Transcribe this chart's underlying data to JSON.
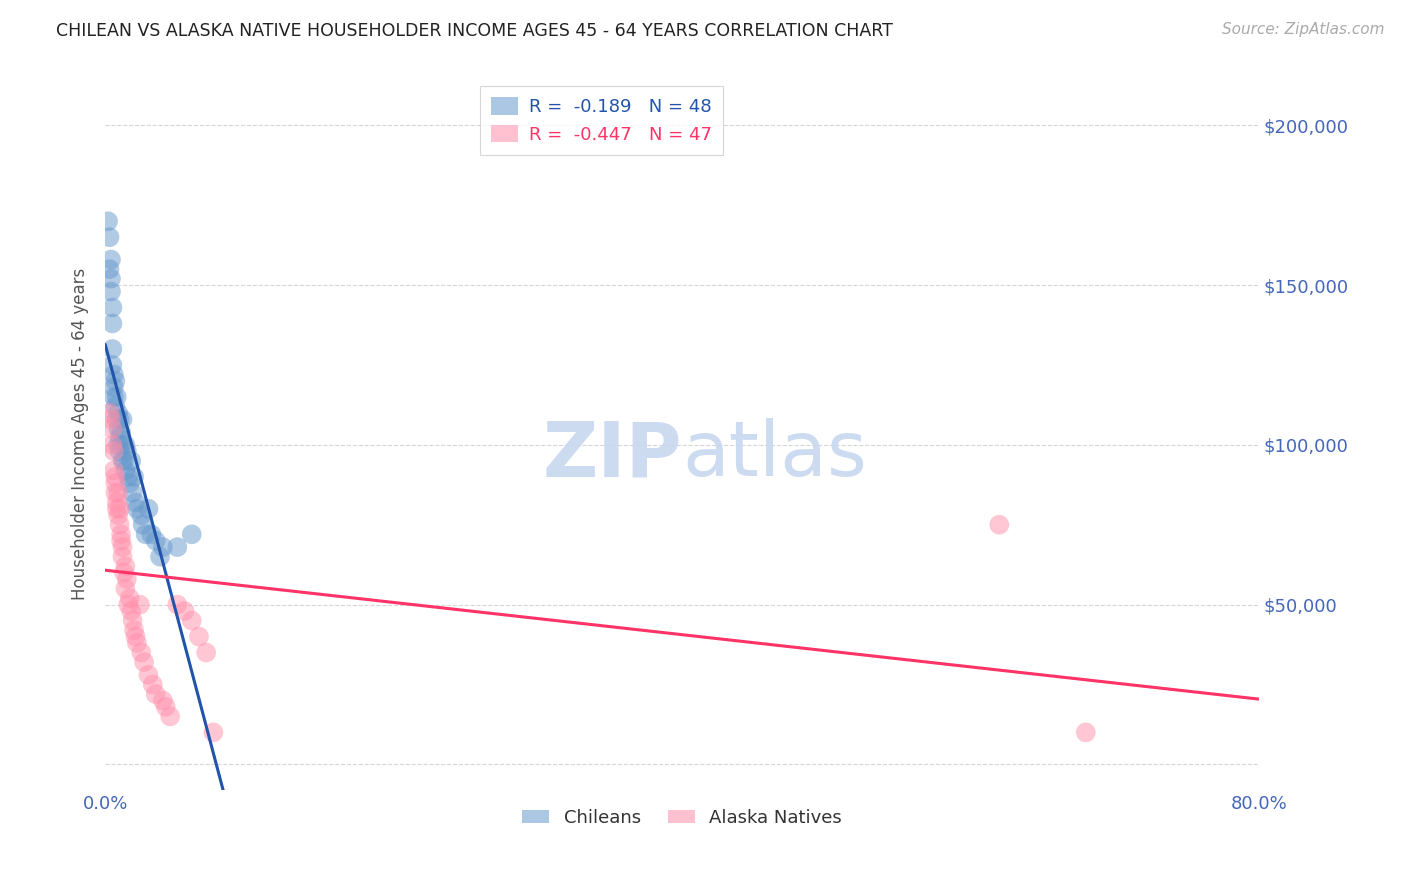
{
  "title": "CHILEAN VS ALASKA NATIVE HOUSEHOLDER INCOME AGES 45 - 64 YEARS CORRELATION CHART",
  "source": "Source: ZipAtlas.com",
  "ylabel": "Householder Income Ages 45 - 64 years",
  "xlim": [
    0.0,
    0.8
  ],
  "ylim": [
    -8000,
    215000
  ],
  "yticks": [
    0,
    50000,
    100000,
    150000,
    200000
  ],
  "r_chilean": -0.189,
  "n_chilean": 48,
  "r_alaska": -0.447,
  "n_alaska": 47,
  "chilean_color": "#6699CC",
  "alaska_color": "#FF8FAB",
  "trend_chilean_color": "#2255AA",
  "trend_alaska_color": "#FF3366",
  "background_color": "#FFFFFF",
  "grid_color": "#CCCCCC",
  "axis_label_color": "#4466BB",
  "title_color": "#222222",
  "chilean_x": [
    0.002,
    0.003,
    0.003,
    0.004,
    0.004,
    0.004,
    0.005,
    0.005,
    0.005,
    0.005,
    0.006,
    0.006,
    0.006,
    0.007,
    0.007,
    0.008,
    0.008,
    0.009,
    0.009,
    0.009,
    0.01,
    0.01,
    0.01,
    0.011,
    0.011,
    0.012,
    0.012,
    0.013,
    0.014,
    0.014,
    0.015,
    0.016,
    0.017,
    0.018,
    0.019,
    0.02,
    0.021,
    0.022,
    0.025,
    0.026,
    0.028,
    0.03,
    0.032,
    0.035,
    0.038,
    0.04,
    0.05,
    0.06
  ],
  "chilean_y": [
    170000,
    165000,
    155000,
    158000,
    152000,
    148000,
    143000,
    138000,
    130000,
    125000,
    122000,
    118000,
    115000,
    120000,
    112000,
    115000,
    108000,
    110000,
    105000,
    100000,
    108000,
    102000,
    98000,
    104000,
    100000,
    108000,
    95000,
    95000,
    100000,
    92000,
    98000,
    90000,
    88000,
    95000,
    85000,
    90000,
    82000,
    80000,
    78000,
    75000,
    72000,
    80000,
    72000,
    70000,
    65000,
    68000,
    68000,
    72000
  ],
  "alaska_x": [
    0.003,
    0.004,
    0.005,
    0.005,
    0.006,
    0.006,
    0.007,
    0.007,
    0.007,
    0.008,
    0.008,
    0.009,
    0.009,
    0.01,
    0.01,
    0.011,
    0.011,
    0.012,
    0.012,
    0.013,
    0.014,
    0.014,
    0.015,
    0.016,
    0.017,
    0.018,
    0.019,
    0.02,
    0.021,
    0.022,
    0.024,
    0.025,
    0.027,
    0.03,
    0.033,
    0.035,
    0.04,
    0.042,
    0.045,
    0.05,
    0.055,
    0.06,
    0.065,
    0.07,
    0.075,
    0.62,
    0.68
  ],
  "alaska_y": [
    110000,
    108000,
    105000,
    100000,
    98000,
    92000,
    90000,
    85000,
    88000,
    82000,
    80000,
    85000,
    78000,
    80000,
    75000,
    72000,
    70000,
    68000,
    65000,
    60000,
    62000,
    55000,
    58000,
    50000,
    52000,
    48000,
    45000,
    42000,
    40000,
    38000,
    50000,
    35000,
    32000,
    28000,
    25000,
    22000,
    20000,
    18000,
    15000,
    50000,
    48000,
    45000,
    40000,
    35000,
    10000,
    75000,
    10000
  ]
}
